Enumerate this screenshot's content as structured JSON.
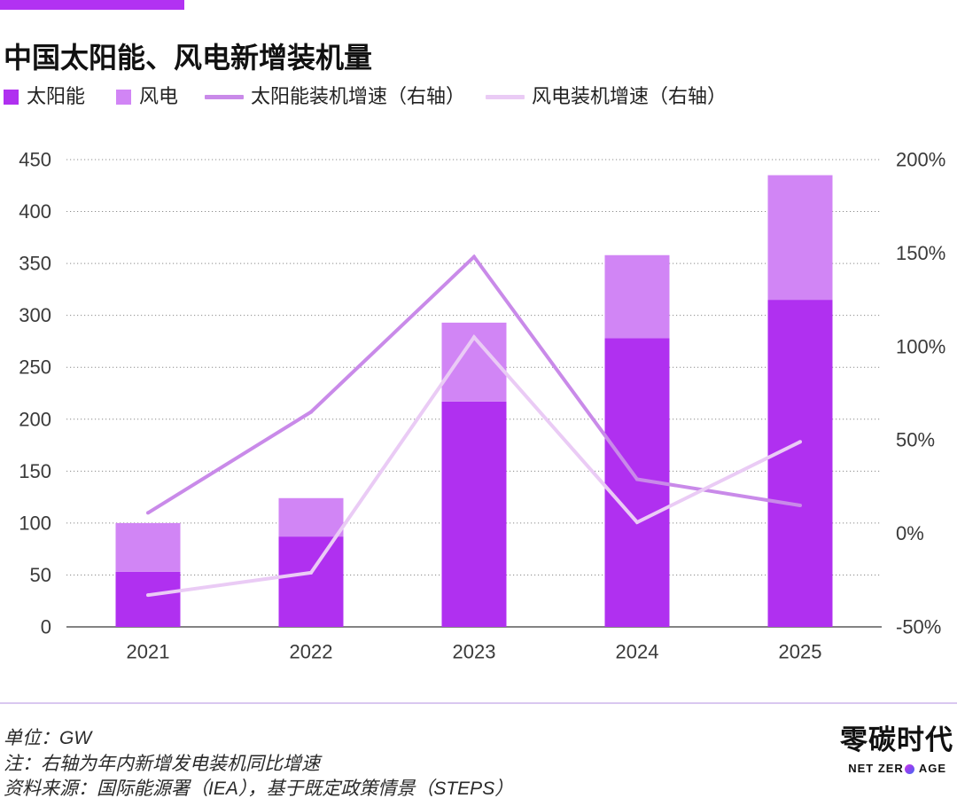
{
  "header": {
    "accent_color": "#b232f2"
  },
  "chart_data": {
    "type": "bar",
    "title": "中国太阳能、风电新增装机量",
    "categories": [
      "2021",
      "2022",
      "2023",
      "2024",
      "2025"
    ],
    "stacked": true,
    "series": [
      {
        "name": "太阳能",
        "values": [
          53,
          87,
          217,
          278,
          315
        ],
        "color": "#b030f0"
      },
      {
        "name": "风电",
        "values": [
          47,
          37,
          76,
          80,
          120
        ],
        "color": "#d185f5"
      }
    ],
    "line_series": [
      {
        "name": "太阳能装机增速（右轴）",
        "values": [
          11,
          65,
          148,
          29,
          15
        ],
        "color": "#c98ae9"
      },
      {
        "name": "风电装机增速（右轴）",
        "values": [
          -33,
          -21,
          105,
          6,
          49
        ],
        "color": "#eacbf5"
      }
    ],
    "xlabel": "",
    "ylabel": "",
    "ylim": [
      0,
      450
    ],
    "y_ticks": [
      0,
      50,
      100,
      150,
      200,
      250,
      300,
      350,
      400,
      450
    ],
    "y2lim": [
      -50,
      200
    ],
    "y2_ticks": [
      -50,
      0,
      50,
      100,
      150,
      200
    ],
    "y2_tick_labels": [
      "-50%",
      "0%",
      "50%",
      "100%",
      "150%",
      "200%"
    ],
    "grid": true,
    "legend": "top-left"
  },
  "footer": {
    "unit_note": "单位：GW",
    "axis_note": "注：右轴为年内新增发电装机同比增速",
    "source": "资料来源：国际能源署（IEA），基于既定政策情景（STEPS）"
  },
  "logo": {
    "name": "零碳时代",
    "tagline_left": "NET ZER",
    "tagline_right": "AGE"
  }
}
